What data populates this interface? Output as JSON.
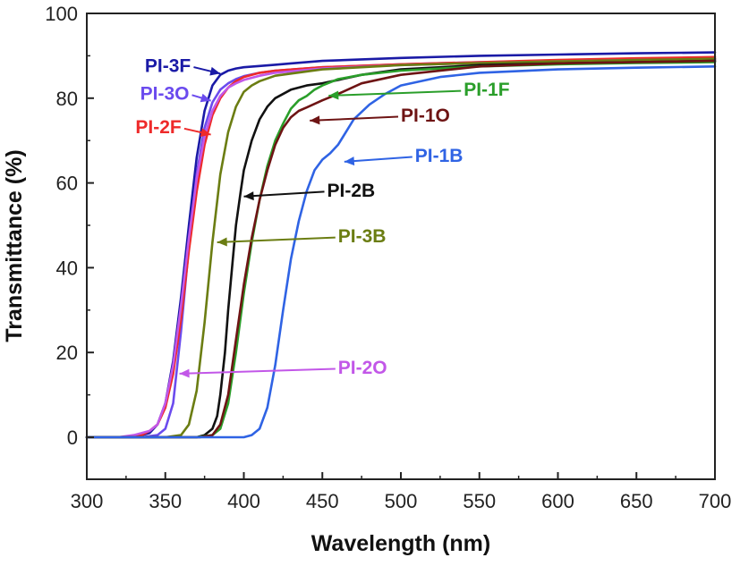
{
  "chart_data": {
    "type": "line",
    "title": "",
    "xlabel": "Wavelength (nm)",
    "ylabel": "Transmittance (%)",
    "xlim": [
      300,
      700
    ],
    "ylim": [
      0,
      100
    ],
    "xticks": [
      300,
      350,
      400,
      450,
      500,
      550,
      600,
      650,
      700
    ],
    "yticks": [
      0,
      20,
      40,
      60,
      80,
      100
    ],
    "grid": false,
    "legend": "none",
    "series": [
      {
        "name": "PI-3F",
        "color": "#1a1aa6",
        "x": [
          300,
          330,
          340,
          345,
          350,
          355,
          360,
          365,
          370,
          375,
          380,
          385,
          390,
          395,
          400,
          410,
          420,
          430,
          450,
          500,
          550,
          600,
          650,
          700
        ],
        "y": [
          0,
          0,
          1,
          3,
          8,
          18,
          33,
          50,
          66,
          77,
          83,
          85.5,
          86.5,
          87,
          87.3,
          87.6,
          87.9,
          88.2,
          88.8,
          89.5,
          90,
          90.3,
          90.6,
          90.8
        ]
      },
      {
        "name": "PI-3O",
        "color": "#6b4bee",
        "x": [
          300,
          335,
          345,
          350,
          355,
          360,
          365,
          370,
          375,
          380,
          385,
          390,
          395,
          400,
          410,
          420,
          450,
          500,
          550,
          600,
          650,
          700
        ],
        "y": [
          0,
          0,
          0.5,
          2,
          8,
          25,
          45,
          62,
          73,
          79,
          82,
          83.5,
          84.5,
          85.2,
          86,
          86.5,
          87.3,
          88,
          88.5,
          88.8,
          89,
          89.2
        ]
      },
      {
        "name": "PI-2F",
        "color": "#ee2a2a",
        "x": [
          300,
          325,
          335,
          340,
          345,
          350,
          355,
          360,
          365,
          370,
          375,
          380,
          385,
          390,
          395,
          400,
          410,
          420,
          450,
          500,
          550,
          600,
          650,
          700
        ],
        "y": [
          0,
          0,
          0.5,
          1.5,
          3,
          7,
          15,
          28,
          44,
          58,
          69,
          76,
          80,
          82.5,
          84,
          85,
          86,
          86.5,
          87.3,
          88,
          88.5,
          89,
          89.4,
          89.7
        ]
      },
      {
        "name": "PI-2O",
        "color": "#c257e8",
        "x": [
          300,
          320,
          330,
          340,
          345,
          350,
          355,
          360,
          365,
          370,
          375,
          380,
          385,
          390,
          395,
          400,
          410,
          420,
          450,
          500,
          550,
          600,
          650,
          700
        ],
        "y": [
          0,
          0,
          0.5,
          1.5,
          3,
          8,
          17,
          31,
          47,
          61,
          71,
          77,
          80.5,
          82.5,
          83.5,
          84.3,
          85.3,
          86,
          87,
          87.8,
          88.3,
          88.7,
          89,
          89.2
        ]
      },
      {
        "name": "PI-3B",
        "color": "#6b7d12",
        "x": [
          300,
          350,
          360,
          365,
          370,
          375,
          380,
          385,
          390,
          395,
          400,
          405,
          410,
          420,
          450,
          500,
          550,
          600,
          650,
          700
        ],
        "y": [
          0,
          0,
          0.5,
          3,
          11,
          27,
          46,
          62,
          72,
          78,
          81.5,
          83,
          84,
          85.3,
          86.8,
          87.8,
          88.3,
          88.7,
          89,
          89.3
        ]
      },
      {
        "name": "PI-2B",
        "color": "#111111",
        "x": [
          300,
          370,
          375,
          380,
          383,
          385,
          388,
          390,
          393,
          395,
          398,
          400,
          405,
          410,
          415,
          420,
          430,
          440,
          450,
          475,
          500,
          550,
          600,
          650,
          700
        ],
        "y": [
          0,
          0,
          0.5,
          2,
          5,
          10,
          20,
          30,
          42,
          50,
          58,
          63,
          70,
          75,
          78,
          80,
          82,
          83,
          83.5,
          85.5,
          86.8,
          87.8,
          88.2,
          88.5,
          88.8
        ]
      },
      {
        "name": "PI-1F",
        "color": "#2a9e2a",
        "x": [
          300,
          370,
          380,
          385,
          390,
          395,
          400,
          405,
          410,
          415,
          420,
          425,
          430,
          435,
          440,
          445,
          450,
          460,
          475,
          500,
          550,
          600,
          650,
          700
        ],
        "y": [
          0,
          0,
          0.5,
          2,
          8,
          20,
          34,
          46,
          56,
          64,
          70,
          74,
          77.5,
          79.5,
          80.5,
          82,
          83,
          84.5,
          85.5,
          86.5,
          87.5,
          88,
          88.3,
          88.5
        ]
      },
      {
        "name": "PI-1O",
        "color": "#6e1414",
        "x": [
          300,
          372,
          380,
          385,
          390,
          395,
          400,
          405,
          410,
          415,
          420,
          425,
          430,
          435,
          440,
          450,
          460,
          475,
          500,
          550,
          600,
          650,
          700
        ],
        "y": [
          0,
          0,
          0.5,
          3,
          10,
          23,
          36,
          47,
          56,
          63,
          69,
          73,
          75.5,
          77,
          77.8,
          79.5,
          81,
          83.5,
          85.5,
          87.5,
          88.2,
          88.5,
          88.8
        ]
      },
      {
        "name": "PI-1B",
        "color": "#2f63e4",
        "x": [
          300,
          400,
          405,
          410,
          415,
          420,
          425,
          430,
          435,
          440,
          445,
          450,
          455,
          460,
          465,
          470,
          480,
          490,
          500,
          525,
          550,
          600,
          650,
          700
        ],
        "y": [
          0,
          0,
          0.5,
          2,
          7,
          17,
          30,
          42,
          51,
          58,
          63,
          65.5,
          67,
          69,
          72,
          75,
          78.5,
          81,
          83,
          85,
          86,
          86.8,
          87.2,
          87.5
        ]
      }
    ],
    "annotations": [
      {
        "text": "PI-3F",
        "color": "#1a1aa6",
        "x": 337,
        "y": 86.2,
        "to_x": 385,
        "to_y": 85.8
      },
      {
        "text": "PI-3O",
        "color": "#6b4bee",
        "x": 334,
        "y": 79.6,
        "to_x": 379,
        "to_y": 79.4
      },
      {
        "text": "PI-2F",
        "color": "#ee2a2a",
        "x": 331,
        "y": 71.7,
        "to_x": 379,
        "to_y": 71.4
      },
      {
        "text": "PI-2O",
        "color": "#c257e8",
        "x": 460,
        "y": 15.0,
        "to_x": 359,
        "to_y": 15.0
      },
      {
        "text": "PI-3B",
        "color": "#6b7d12",
        "x": 460,
        "y": 46.0,
        "to_x": 383,
        "to_y": 46.0
      },
      {
        "text": "PI-2B",
        "color": "#111111",
        "x": 453,
        "y": 56.8,
        "to_x": 400,
        "to_y": 56.8
      },
      {
        "text": "PI-1F",
        "color": "#2a9e2a",
        "x": 540,
        "y": 80.6,
        "to_x": 454,
        "to_y": 80.6
      },
      {
        "text": "PI-1O",
        "color": "#6e1414",
        "x": 500,
        "y": 74.5,
        "to_x": 442,
        "to_y": 74.7
      },
      {
        "text": "PI-1B",
        "color": "#2f63e4",
        "x": 509,
        "y": 65.0,
        "to_x": 464,
        "to_y": 65.0
      }
    ]
  }
}
